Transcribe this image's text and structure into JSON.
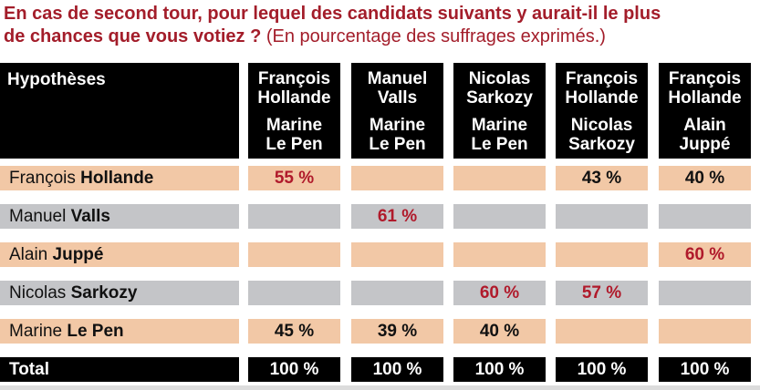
{
  "title": {
    "bold": "En cas de second tour, pour lequel des candidats suivants y aurait-il le plus de chances que vous votiez ?",
    "line1": "En cas de second tour, pour lequel des candidats suivants y aurait-il le plus",
    "line2_bold": "de chances que vous votiez ?",
    "line2_normal": " (En pourcentage des suffrages exprimés.)"
  },
  "header": {
    "first": "Hypothèses",
    "columns": [
      {
        "a1": "François",
        "a2": "Hollande",
        "b1": "Marine",
        "b2": "Le Pen"
      },
      {
        "a1": "Manuel",
        "a2": "Valls",
        "b1": "Marine",
        "b2": "Le Pen"
      },
      {
        "a1": "Nicolas",
        "a2": "Sarkozy",
        "b1": "Marine",
        "b2": "Le Pen"
      },
      {
        "a1": "François",
        "a2": "Hollande",
        "b1": "Nicolas",
        "b2": "Sarkozy"
      },
      {
        "a1": "François",
        "a2": "Hollande",
        "b1": "Alain",
        "b2": "Juppé"
      }
    ]
  },
  "rows": [
    {
      "first": "François",
      "last": "Hollande",
      "cells": [
        "55 %",
        "",
        "",
        "43 %",
        "40 %"
      ]
    },
    {
      "first": "Manuel",
      "last": "Valls",
      "cells": [
        "",
        "61 %",
        "",
        "",
        ""
      ]
    },
    {
      "first": "Alain",
      "last": "Juppé",
      "cells": [
        "",
        "",
        "",
        "",
        "60 %"
      ]
    },
    {
      "first": "Nicolas",
      "last": "Sarkozy",
      "cells": [
        "",
        "",
        "60 %",
        "57 %",
        ""
      ]
    },
    {
      "first": "Marine",
      "last": "Le Pen",
      "cells": [
        "45 %",
        "39 %",
        "40 %",
        "",
        ""
      ]
    }
  ],
  "total": {
    "label": "Total",
    "cells": [
      "100 %",
      "100 %",
      "100 %",
      "100 %",
      "100 %"
    ]
  },
  "colors": {
    "accent": "#a31d2a",
    "peach": "#f2c8a6",
    "grey": "#c4c5c8",
    "highlight": "#b01a2b"
  }
}
